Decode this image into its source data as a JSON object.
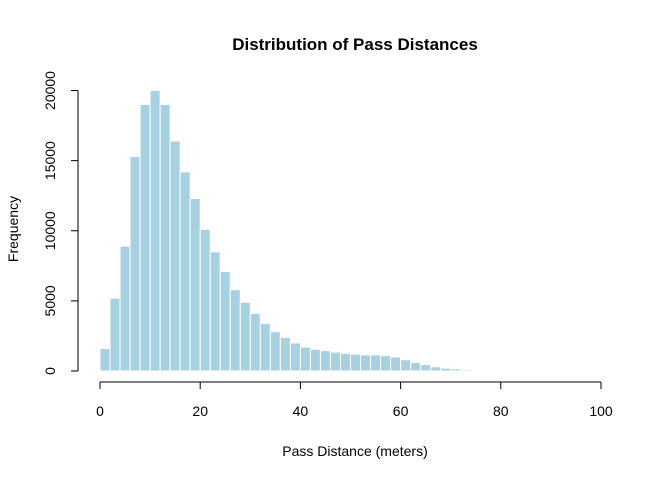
{
  "chart_data": {
    "type": "bar",
    "title": "Distribution of Pass Distances",
    "xlabel": "Pass Distance (meters)",
    "ylabel": "Frequency",
    "bin_width": 2,
    "bin_starts": [
      0,
      2,
      4,
      6,
      8,
      10,
      12,
      14,
      16,
      18,
      20,
      22,
      24,
      26,
      28,
      30,
      32,
      34,
      36,
      38,
      40,
      42,
      44,
      46,
      48,
      50,
      52,
      54,
      56,
      58,
      60,
      62,
      64,
      66,
      68,
      70,
      72,
      74,
      76,
      78
    ],
    "values": [
      1600,
      5200,
      8900,
      15300,
      19000,
      20000,
      19000,
      16400,
      14200,
      12300,
      10100,
      8500,
      7100,
      5800,
      4900,
      4100,
      3400,
      2800,
      2400,
      2000,
      1700,
      1550,
      1450,
      1350,
      1250,
      1200,
      1150,
      1150,
      1100,
      1000,
      800,
      600,
      450,
      300,
      200,
      150,
      100,
      60,
      30,
      10
    ],
    "xlim": [
      0,
      100
    ],
    "ylim": [
      0,
      20000
    ],
    "x_ticks": [
      "0",
      "20",
      "40",
      "60",
      "80",
      "100"
    ],
    "y_ticks": [
      "0",
      "5000",
      "10000",
      "15000",
      "20000"
    ],
    "grid": false,
    "legend": "none",
    "bar_color": "#A6D1E1",
    "bar_border_color": "#ffffff"
  }
}
